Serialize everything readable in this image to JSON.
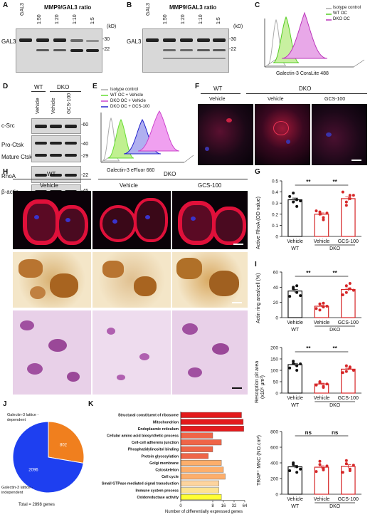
{
  "panels": {
    "A": {
      "label": "A",
      "title": "MMP9/GAL3 ratio",
      "lanes": [
        "GAL3",
        "1:50",
        "1:20",
        "1:10",
        "1:5"
      ],
      "row_label": "GAL3",
      "kd_unit": "(kD)",
      "markers": [
        "-30",
        "-22"
      ]
    },
    "B": {
      "label": "B",
      "title": "MMP9/GAL3 ratio",
      "lanes": [
        "GAL3",
        "1:50",
        "1:20",
        "1:10",
        "1:5"
      ],
      "row_label": "GAL3",
      "kd_unit": "(kD)",
      "markers": [
        "-30",
        "-22"
      ]
    },
    "C": {
      "label": "C",
      "legend": [
        "Isotype control",
        "WT OC",
        "DKO OC"
      ],
      "xlabel": "Galectin-3 CoraLite 488"
    },
    "D": {
      "label": "D",
      "groups": [
        "WT",
        "DKO"
      ],
      "lanes": [
        "Vehicle",
        "Vehicle",
        "GCS-100"
      ],
      "rows": [
        {
          "label": "c-Src",
          "kd": "-60"
        },
        {
          "label": "Pro-Ctsk",
          "kd": "-40"
        },
        {
          "label": "Mature Ctsk",
          "kd": "-29"
        },
        {
          "label": "RhoA",
          "kd": "-22"
        },
        {
          "label": "β-actin",
          "kd": "-45"
        }
      ]
    },
    "E": {
      "label": "E",
      "legend": [
        "Isotype control",
        "WT OC + Vehicle",
        "DKO OC + Vehicle",
        "DKO OC + GCS-100"
      ],
      "xlabel": "Galectin-3 eFluor 660"
    },
    "F": {
      "label": "F",
      "groups": [
        "WT",
        "DKO"
      ],
      "columns": [
        "Vehicle",
        "Vehicle",
        "GCS-100"
      ]
    },
    "G": {
      "label": "G",
      "ylabel": "Active RhoA (OD value)"
    },
    "H": {
      "label": "H",
      "groups": [
        "WT",
        "DKO"
      ],
      "columns": [
        "Vehicle",
        "Vehicle",
        "GCS-100"
      ]
    },
    "I": {
      "label": "I",
      "ylabel_actin": "Actin ring area/cell (%)",
      "ylabel_resorption": "Resorption pit area",
      "ylabel_resorption_unit": "(x10⁵ μm²)",
      "ylabel_trap": "TRAP⁺ MNC (NO.cm²)"
    },
    "J": {
      "label": "J",
      "slices": [
        {
          "name": "Galectin-3 lattice -dependent",
          "value": 802,
          "color": "#f07f1e"
        },
        {
          "name": "Galectin-3 lattice -independent",
          "value": 2096,
          "color": "#1e3ff0"
        }
      ],
      "total_label": "Total = 2898 genes"
    },
    "K": {
      "label": "K",
      "xlabel": "Number of differentially expressed genes"
    }
  },
  "bar_axis": {
    "xticks": [
      "Vehicle",
      "Vehicle",
      "GCS-100"
    ],
    "groups": [
      "WT",
      "DKO"
    ]
  },
  "chart_data": [
    {
      "type": "bar",
      "title": "",
      "categories": [
        "WT Vehicle",
        "DKO Vehicle",
        "DKO GCS-100"
      ],
      "values": [
        0.33,
        0.2,
        0.34
      ],
      "points": [
        [
          0.36,
          0.31,
          0.27,
          0.39,
          0.33,
          0.32
        ],
        [
          0.23,
          0.2,
          0.17,
          0.22,
          0.15,
          0.21
        ],
        [
          0.4,
          0.31,
          0.37,
          0.28,
          0.34,
          0.37
        ]
      ],
      "ylabel": "Active RhoA (OD value)",
      "ylim": [
        0,
        0.5
      ],
      "yticks": [
        0,
        0.1,
        0.2,
        0.3,
        0.4,
        0.5
      ],
      "significance": [
        "**",
        "**"
      ]
    },
    {
      "type": "bar",
      "title": "",
      "categories": [
        "WT Vehicle",
        "DKO Vehicle",
        "DKO GCS-100"
      ],
      "values": [
        35,
        15,
        37
      ],
      "points": [
        [
          28,
          40,
          33,
          38,
          42,
          29
        ],
        [
          12,
          18,
          14,
          10,
          19,
          15
        ],
        [
          30,
          42,
          45,
          33,
          38,
          36
        ]
      ],
      "ylabel": "Actin ring area/cell (%)",
      "ylim": [
        0,
        60
      ],
      "yticks": [
        0,
        20,
        40,
        60
      ],
      "significance": [
        "**",
        "**"
      ]
    },
    {
      "type": "bar",
      "title": "",
      "categories": [
        "WT Vehicle",
        "DKO Vehicle",
        "DKO GCS-100"
      ],
      "values": [
        125,
        40,
        105
      ],
      "points": [
        [
          110,
          140,
          120,
          130,
          100,
          128
        ],
        [
          35,
          50,
          30,
          45,
          25,
          40
        ],
        [
          90,
          120,
          110,
          95,
          115,
          100
        ]
      ],
      "ylabel": "Resorption pit area (x10⁵ μm²)",
      "ylim": [
        0,
        200
      ],
      "yticks": [
        0,
        50,
        100,
        150,
        200
      ],
      "significance": [
        "**",
        "**"
      ]
    },
    {
      "type": "bar",
      "title": "",
      "categories": [
        "WT Vehicle",
        "DKO Vehicle",
        "DKO GCS-100"
      ],
      "values": [
        350,
        345,
        355
      ],
      "points": [
        [
          300,
          400,
          280,
          380,
          350,
          320
        ],
        [
          290,
          420,
          310,
          380,
          330,
          360
        ],
        [
          280,
          430,
          320,
          390,
          300,
          370
        ]
      ],
      "ylabel": "TRAP⁺ MNC (NO.cm²)",
      "ylim": [
        0,
        800
      ],
      "yticks": [
        0,
        200,
        400,
        600,
        800
      ],
      "significance": [
        "ns",
        "ns"
      ]
    },
    {
      "type": "pie",
      "title": "",
      "categories": [
        "Galectin-3 lattice -dependent",
        "Galectin-3 lattice -independent"
      ],
      "values": [
        802,
        2096
      ]
    },
    {
      "type": "bar",
      "title": "",
      "orientation": "horizontal",
      "categories": [
        "Structural constituent of ribosome",
        "Mitochondrion",
        "Endoplasmic reticulum",
        "Cellular amino acid biosynthetic process",
        "Cell-cell adherens junction",
        "Phosphatidylinositol binding",
        "Protein glycosylation",
        "Golgi membrane",
        "Cytoskeleton",
        "Cell cycle",
        "Small GTPase mediated signal transduction",
        "Immune system process",
        "Oxidoreductase activity"
      ],
      "values": [
        52,
        58,
        60,
        8,
        14,
        8,
        6,
        14,
        16,
        18,
        12,
        12,
        14
      ],
      "colors": [
        "#e31a1c",
        "#e31a1c",
        "#e31a1c",
        "#ef6548",
        "#ef6548",
        "#ef6548",
        "#ef6548",
        "#fdae6b",
        "#fdae6b",
        "#fdae6b",
        "#fdd49e",
        "#fee391",
        "#ffff33"
      ],
      "xlabel": "Number of differentially expressed genes",
      "xticks": [
        0,
        8,
        16,
        32,
        64
      ],
      "xscale": "log2"
    }
  ]
}
